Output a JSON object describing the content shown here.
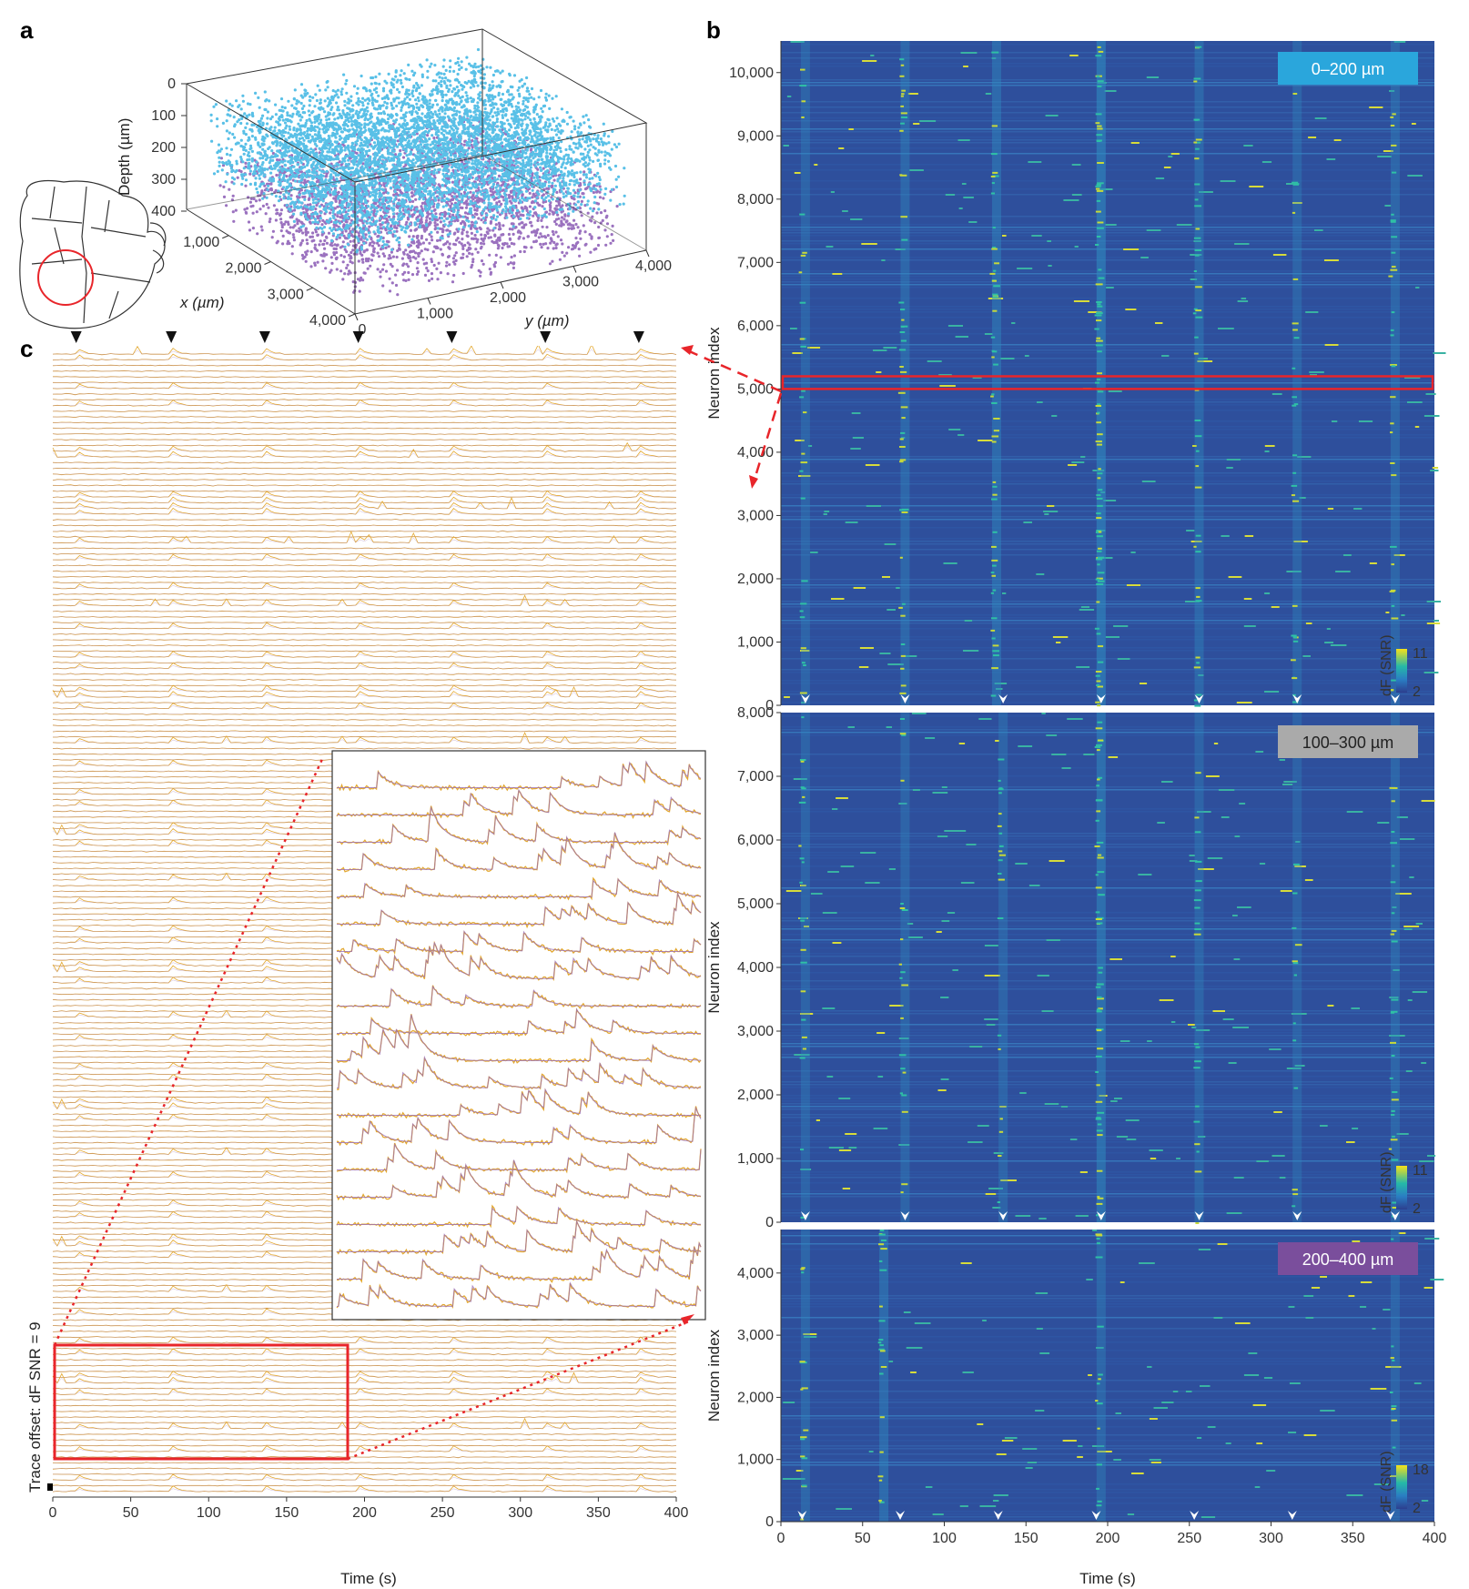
{
  "panel_labels": [
    "a",
    "b",
    "c"
  ],
  "colors": {
    "shallow_points": "#3db6e3",
    "deep_points": "#8a5ab5",
    "trace_line": "#e3a830",
    "trace_fit": "#9a6fb3",
    "heatmap_bg": "#2e4f9c",
    "highlight_red": "#e8252a",
    "badge_0_200": "#2aa6dc",
    "badge_100_300": "#aaaaaa",
    "badge_200_400": "#7a4e9c"
  },
  "chart_data": [
    {
      "type": "scatter",
      "panel": "a",
      "xlabel": "x (µm)",
      "ylabel": "y (µm)",
      "zlabel": "Depth (µm)",
      "x_ticks": [
        "1,000",
        "2,000",
        "3,000",
        "4,000"
      ],
      "y_ticks": [
        "0",
        "1,000",
        "2,000",
        "3,000",
        "4,000"
      ],
      "z_ticks": [
        "0",
        "100",
        "200",
        "300",
        "400"
      ],
      "xlim": [
        0,
        4000
      ],
      "ylim": [
        0,
        4000
      ],
      "zlim": [
        0,
        400
      ],
      "groups": [
        {
          "color": "#3db6e3",
          "depth_range": [
            0,
            250
          ]
        },
        {
          "color": "#8a5ab5",
          "depth_range": [
            200,
            400
          ]
        }
      ]
    },
    {
      "type": "heatmap",
      "panel": "b",
      "subpanels": [
        {
          "label": "0–200 µm",
          "ylabel": "Neuron index",
          "y_ticks": [
            "0",
            "1,000",
            "2,000",
            "3,000",
            "4,000",
            "5,000",
            "6,000",
            "7,000",
            "8,000",
            "9,000",
            "10,000"
          ],
          "ylim": [
            0,
            10500
          ],
          "colorbar": {
            "label": "dF (SNR)",
            "min": "2",
            "max": "11"
          },
          "highlight_rows": [
            5000,
            5200
          ],
          "event_times": [
            15,
            76,
            136,
            196,
            256,
            316,
            376
          ],
          "bands": [
            [
              15,
              0.3
            ],
            [
              76,
              0.5
            ],
            [
              132,
              0.6
            ],
            [
              196,
              1.0
            ],
            [
              256,
              0.5
            ],
            [
              316,
              0.3
            ],
            [
              376,
              0.4
            ]
          ]
        },
        {
          "label": "100–300 µm",
          "ylabel": "Neuron index",
          "y_ticks": [
            "0",
            "1,000",
            "2,000",
            "3,000",
            "4,000",
            "5,000",
            "6,000",
            "7,000",
            "8,000"
          ],
          "ylim": [
            0,
            8000
          ],
          "colorbar": {
            "label": "dF (SNR)",
            "min": "2",
            "max": "11"
          },
          "event_times": [
            15,
            76,
            136,
            196,
            256,
            316,
            376
          ],
          "bands": [
            [
              15,
              0.3
            ],
            [
              76,
              0.3
            ],
            [
              136,
              0.3
            ],
            [
              196,
              0.8
            ],
            [
              256,
              0.3
            ],
            [
              316,
              0.2
            ],
            [
              376,
              0.4
            ]
          ]
        },
        {
          "label": "200–400 µm",
          "ylabel": "Neuron index",
          "y_ticks": [
            "0",
            "1,000",
            "2,000",
            "3,000",
            "4,000"
          ],
          "ylim": [
            0,
            4700
          ],
          "colorbar": {
            "label": "dF (SNR)",
            "min": "2",
            "max": "18"
          },
          "event_times": [
            13,
            73,
            133,
            193,
            253,
            313,
            373
          ],
          "bands": [
            [
              15,
              0.4
            ],
            [
              63,
              0.6
            ],
            [
              196,
              0.4
            ],
            [
              376,
              0.3
            ]
          ]
        }
      ],
      "xlabel": "Time (s)",
      "x_ticks": [
        "0",
        "50",
        "100",
        "150",
        "200",
        "250",
        "300",
        "350",
        "400"
      ],
      "xlim": [
        0,
        400
      ]
    },
    {
      "type": "line",
      "panel": "c",
      "ylabel": "Trace offset: dF SNR = 9",
      "xlabel": "Time (s)",
      "x_ticks": [
        "0",
        "50",
        "100",
        "150",
        "200",
        "250",
        "300",
        "350",
        "400"
      ],
      "xlim": [
        0,
        400
      ],
      "event_times": [
        15,
        76,
        136,
        196,
        256,
        316,
        376
      ],
      "highlight_time_range": [
        0,
        190
      ],
      "inset_traces": 20
    }
  ]
}
